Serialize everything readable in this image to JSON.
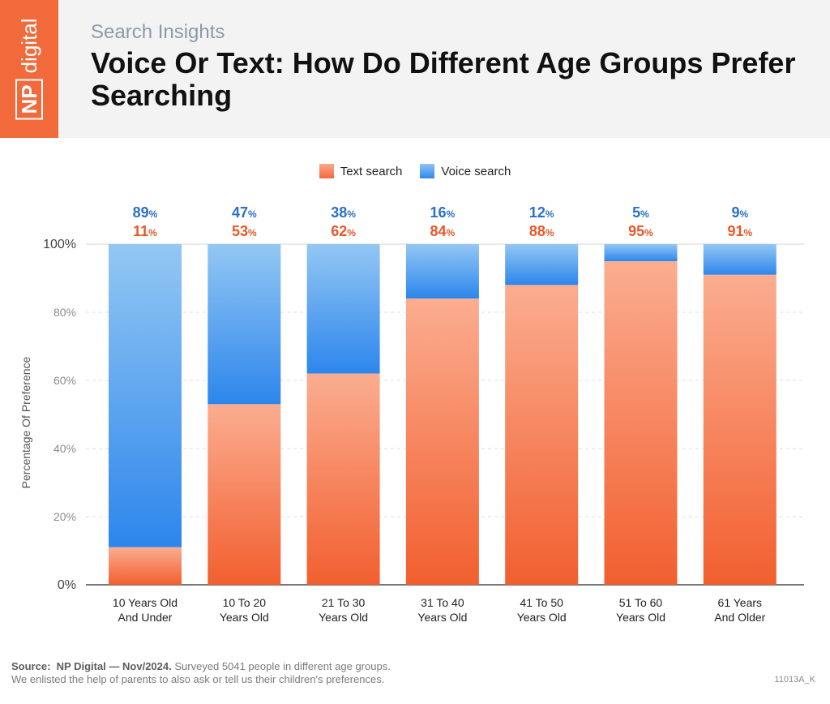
{
  "brand": {
    "np": "NP",
    "name": "digital"
  },
  "header": {
    "subtitle": "Search Insights",
    "title": "Voice Or Text: How Do Different Age Groups Prefer Searching"
  },
  "colors": {
    "text_search": "#f26a3c",
    "voice_search": "#2e88ec",
    "brand": "#f26a3c"
  },
  "chart_data": {
    "type": "bar",
    "stacked": true,
    "title": "Voice Or Text: How Do Different Age Groups Prefer Searching",
    "xlabel": "",
    "ylabel": "Percentage Of Preference",
    "ylim": [
      0,
      100
    ],
    "yticks": [
      {
        "value": 0,
        "label": "0%"
      },
      {
        "value": 20,
        "label": "20%"
      },
      {
        "value": 40,
        "label": "40%"
      },
      {
        "value": 60,
        "label": "60%"
      },
      {
        "value": 80,
        "label": "80%"
      },
      {
        "value": 100,
        "label": "100%"
      }
    ],
    "grid": true,
    "legend_position": "top-center",
    "categories": [
      [
        "10 Years Old",
        "And Under"
      ],
      [
        "10 To 20",
        "Years Old"
      ],
      [
        "21 To 30",
        "Years Old"
      ],
      [
        "31 To 40",
        "Years Old"
      ],
      [
        "41 To 50",
        "Years Old"
      ],
      [
        "51 To 60",
        "Years Old"
      ],
      [
        "61 Years",
        "And Older"
      ]
    ],
    "series": [
      {
        "name": "Text search",
        "values": [
          11,
          53,
          62,
          84,
          88,
          95,
          91
        ],
        "color": "#f26a3c"
      },
      {
        "name": "Voice search",
        "values": [
          89,
          47,
          38,
          16,
          12,
          5,
          9
        ],
        "color": "#2e88ec"
      }
    ],
    "label_suffix": "%"
  },
  "footer": {
    "source_label": "Source:",
    "source_name": "NP Digital — Nov/2024.",
    "line1": "Surveyed 5041 people in different age groups.",
    "line2": "We enlisted the help of parents to also ask or tell us their children's preferences.",
    "code": "11013A_K"
  }
}
